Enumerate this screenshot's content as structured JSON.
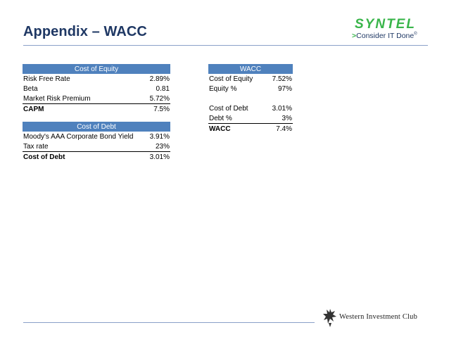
{
  "slide": {
    "title": "Appendix – WACC"
  },
  "logo": {
    "brand": "SYNTEL",
    "tagline_chevron": ">",
    "tagline": "Consider IT Done",
    "tagline_mark": "®",
    "brand_color": "#39b54a"
  },
  "cost_of_equity": {
    "header": "Cost of Equity",
    "rows": [
      {
        "label": "Risk Free Rate",
        "value": "2.89%"
      },
      {
        "label": "Beta",
        "value": "0.81"
      },
      {
        "label": "Market Risk Premium",
        "value": "5.72%"
      },
      {
        "label": "CAPM",
        "value": "7.5%"
      }
    ]
  },
  "cost_of_debt": {
    "header": "Cost of Debt",
    "rows": [
      {
        "label": "Moody's AAA Corporate Bond Yield",
        "value": "3.91%"
      },
      {
        "label": "Tax rate",
        "value": "23%"
      },
      {
        "label": "Cost of Debt",
        "value": "3.01%"
      }
    ]
  },
  "wacc": {
    "header": "WACC",
    "rows": [
      {
        "label": "Cost of Equity",
        "value": "7.52%"
      },
      {
        "label": "Equity %",
        "value": "97%"
      },
      {
        "label": "Cost of Debt",
        "value": "3.01%"
      },
      {
        "label": "Debt %",
        "value": "3%"
      },
      {
        "label": "WACC",
        "value": "7.4%"
      }
    ]
  },
  "footer": {
    "club_name": "Western Investment Club",
    "emblem_icon": "griffin-emblem-icon"
  },
  "colors": {
    "title": "#1f3864",
    "table_header": "#4f81bd",
    "rule": "#8aa0c8"
  }
}
